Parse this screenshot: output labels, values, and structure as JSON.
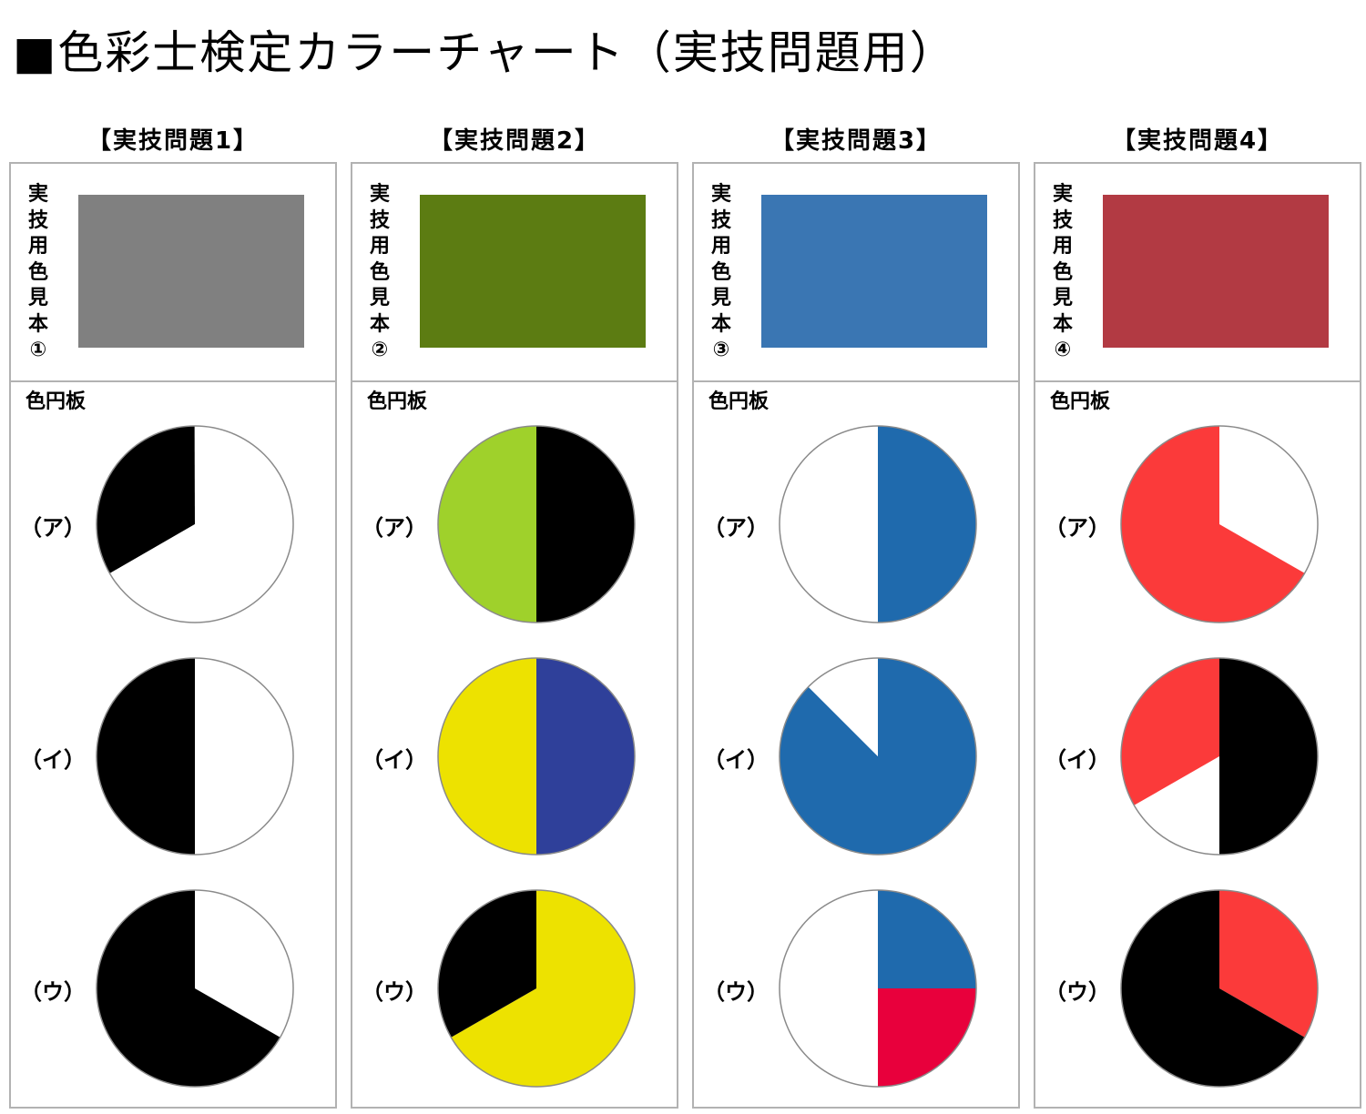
{
  "page": {
    "title": "■色彩士検定カラーチャート（実技問題用）"
  },
  "wheel_label": "色円板",
  "row_labels": [
    "（ア）",
    "（イ）",
    "（ウ）"
  ],
  "problems": [
    {
      "label": "【実技問題1】",
      "sample_caption": "実技用色見本①",
      "sample_color": "#808080",
      "wheels": [
        {
          "segments": [
            {
              "color": "#000000",
              "fraction": 0.333
            },
            {
              "color": "#ffffff",
              "fraction": 0.667
            }
          ],
          "start_angle": 240
        },
        {
          "segments": [
            {
              "color": "#ffffff",
              "fraction": 0.5
            },
            {
              "color": "#000000",
              "fraction": 0.5
            }
          ],
          "start_angle": 0
        },
        {
          "segments": [
            {
              "color": "#ffffff",
              "fraction": 0.333
            },
            {
              "color": "#000000",
              "fraction": 0.667
            }
          ],
          "start_angle": 0
        }
      ]
    },
    {
      "label": "【実技問題2】",
      "sample_caption": "実技用色見本②",
      "sample_color": "#5c7c12",
      "wheels": [
        {
          "segments": [
            {
              "color": "#000000",
              "fraction": 0.5
            },
            {
              "color": "#9fd12b",
              "fraction": 0.5
            }
          ],
          "start_angle": 0
        },
        {
          "segments": [
            {
              "color": "#2f409a",
              "fraction": 0.5
            },
            {
              "color": "#ede200",
              "fraction": 0.5
            }
          ],
          "start_angle": 0
        },
        {
          "segments": [
            {
              "color": "#ede200",
              "fraction": 0.667
            },
            {
              "color": "#000000",
              "fraction": 0.333
            }
          ],
          "start_angle": 0
        }
      ]
    },
    {
      "label": "【実技問題3】",
      "sample_caption": "実技用色見本③",
      "sample_color": "#3a76b3",
      "wheels": [
        {
          "segments": [
            {
              "color": "#1f6aad",
              "fraction": 0.5
            },
            {
              "color": "#ffffff",
              "fraction": 0.5
            }
          ],
          "start_angle": 0
        },
        {
          "segments": [
            {
              "color": "#1f6aad",
              "fraction": 0.875
            },
            {
              "color": "#ffffff",
              "fraction": 0.125
            }
          ],
          "start_angle": 0
        },
        {
          "segments": [
            {
              "color": "#1f6aad",
              "fraction": 0.25
            },
            {
              "color": "#e8003c",
              "fraction": 0.25
            },
            {
              "color": "#ffffff",
              "fraction": 0.5
            }
          ],
          "start_angle": 0
        }
      ]
    },
    {
      "label": "【実技問題4】",
      "sample_caption": "実技用色見本④",
      "sample_color": "#b23a43",
      "wheels": [
        {
          "segments": [
            {
              "color": "#ffffff",
              "fraction": 0.333
            },
            {
              "color": "#fb3a3a",
              "fraction": 0.667
            }
          ],
          "start_angle": 0
        },
        {
          "segments": [
            {
              "color": "#000000",
              "fraction": 0.5
            },
            {
              "color": "#ffffff",
              "fraction": 0.167
            },
            {
              "color": "#fb3a3a",
              "fraction": 0.333
            }
          ],
          "start_angle": 0
        },
        {
          "segments": [
            {
              "color": "#fb3a3a",
              "fraction": 0.333
            },
            {
              "color": "#000000",
              "fraction": 0.667
            }
          ],
          "start_angle": 0
        }
      ]
    }
  ]
}
